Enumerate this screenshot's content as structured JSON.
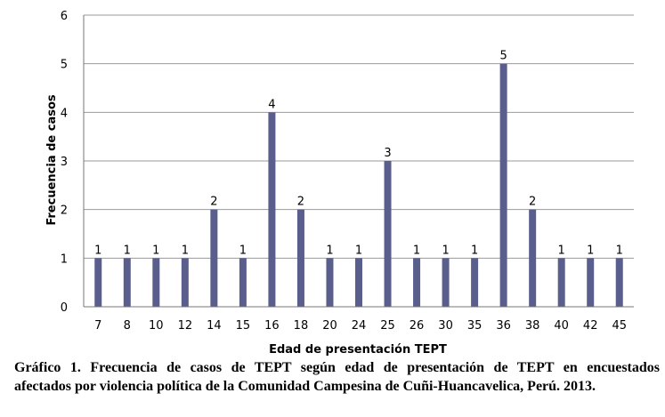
{
  "chart_data": {
    "type": "bar",
    "categories": [
      "7",
      "8",
      "10",
      "12",
      "14",
      "15",
      "16",
      "18",
      "20",
      "24",
      "25",
      "26",
      "30",
      "35",
      "36",
      "38",
      "40",
      "42",
      "45"
    ],
    "values": [
      1,
      1,
      1,
      1,
      2,
      1,
      4,
      2,
      1,
      1,
      3,
      1,
      1,
      1,
      5,
      2,
      1,
      1,
      1
    ],
    "data_labels": [
      "1",
      "1",
      "1",
      "1",
      "2",
      "1",
      "4",
      "2",
      "1",
      "1",
      "3",
      "1",
      "1",
      "1",
      "5",
      "2",
      "1",
      "1",
      "1"
    ],
    "xlabel": "Edad de presentación TEPT",
    "ylabel": "Frecuencia de casos",
    "ylim": [
      0,
      6
    ],
    "yticks": [
      "0",
      "1",
      "2",
      "3",
      "4",
      "5",
      "6"
    ],
    "grid": true,
    "legend": "none",
    "bar_color": "#5a5e8c",
    "grid_color": "#9a9a9a"
  },
  "caption": {
    "line1": "Gráfico 1. Frecuencia de casos de TEPT según edad de presentación de TEPT en encuestados",
    "line2": "afectados por violencia política de la Comunidad Campesina de Cuñi-Huancavelica, Perú. 2013."
  }
}
